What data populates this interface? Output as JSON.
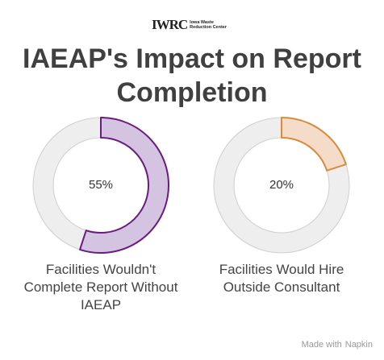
{
  "logo": {
    "mark": "IWRC",
    "line1": "Iowa Waste",
    "line2": "Reduction Center"
  },
  "title": "IAEAP's Impact on Report Completion",
  "chart_data": [
    {
      "type": "donut",
      "label": "Facilities Wouldn't Complete Report Without IAEAP",
      "values": [
        55
      ],
      "value_labels": [
        "55%"
      ],
      "color": "#6a1b7f",
      "fill_color": "#d4c3e1"
    },
    {
      "type": "donut",
      "label": "Facilities Would Hire Outside Consultant",
      "values": [
        20
      ],
      "value_labels": [
        "20%"
      ],
      "color": "#d98a3c",
      "fill_color": "#f5dcc8"
    }
  ],
  "footer": {
    "prefix": "Made with",
    "brand": "Napkin"
  }
}
